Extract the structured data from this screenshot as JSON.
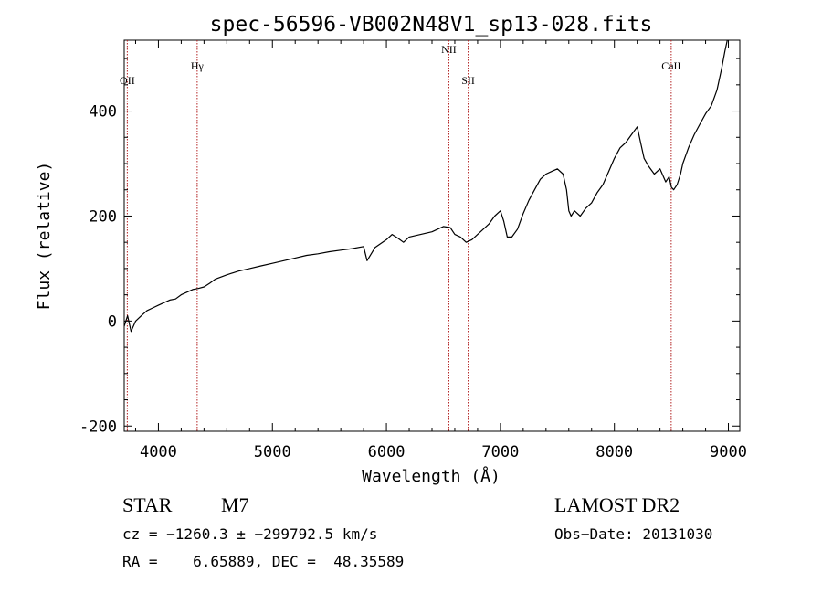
{
  "chart_data": {
    "type": "line",
    "title": "spec-56596-VB002N48V1_sp13-028.fits",
    "xlabel": "Wavelength (Å)",
    "ylabel": "Flux (relative)",
    "xlim": [
      3700,
      9100
    ],
    "ylim": [
      -210,
      535
    ],
    "x_ticks": [
      4000,
      5000,
      6000,
      7000,
      8000,
      9000
    ],
    "y_ticks": [
      -200,
      0,
      200,
      400
    ],
    "grid": false,
    "series": [
      {
        "x": [
          3700,
          3730,
          3760,
          3800,
          3850,
          3900,
          3950,
          4000,
          4050,
          4100,
          4150,
          4200,
          4250,
          4300,
          4350,
          4400,
          4450,
          4500,
          4600,
          4700,
          4800,
          4900,
          5000,
          5100,
          5200,
          5300,
          5400,
          5500,
          5600,
          5700,
          5800,
          5830,
          5900,
          6000,
          6050,
          6100,
          6150,
          6200,
          6300,
          6400,
          6500,
          6560,
          6600,
          6650,
          6700,
          6750,
          6800,
          6850,
          6900,
          6950,
          7000,
          7030,
          7060,
          7100,
          7150,
          7200,
          7250,
          7300,
          7350,
          7400,
          7450,
          7500,
          7550,
          7580,
          7600,
          7620,
          7650,
          7700,
          7750,
          7800,
          7850,
          7900,
          7950,
          8000,
          8050,
          8100,
          8150,
          8200,
          8230,
          8260,
          8300,
          8350,
          8400,
          8450,
          8480,
          8500,
          8520,
          8550,
          8580,
          8600,
          8650,
          8700,
          8750,
          8800,
          8850,
          8900,
          8940,
          8970,
          8990
        ],
        "y": [
          -10,
          10,
          -20,
          0,
          10,
          20,
          25,
          30,
          35,
          40,
          42,
          50,
          55,
          60,
          62,
          65,
          72,
          80,
          88,
          95,
          100,
          105,
          110,
          115,
          120,
          125,
          128,
          132,
          135,
          138,
          142,
          115,
          140,
          155,
          165,
          158,
          150,
          160,
          165,
          170,
          180,
          178,
          165,
          160,
          150,
          155,
          165,
          175,
          185,
          200,
          210,
          190,
          160,
          160,
          175,
          205,
          230,
          250,
          270,
          280,
          285,
          290,
          280,
          250,
          210,
          200,
          210,
          200,
          215,
          225,
          245,
          260,
          285,
          310,
          330,
          340,
          355,
          370,
          340,
          310,
          295,
          280,
          290,
          265,
          275,
          255,
          250,
          260,
          280,
          300,
          330,
          355,
          375,
          395,
          410,
          440,
          480,
          515,
          535
        ]
      }
    ],
    "lines": [
      {
        "label": "OII",
        "x": 3727
      },
      {
        "label": "Hγ",
        "x": 4340
      },
      {
        "label": "NII",
        "x": 6548
      },
      {
        "label": "SII",
        "x": 6717
      },
      {
        "label": "CaII",
        "x": 8498
      }
    ]
  },
  "info": {
    "object_class": "STAR",
    "subclass": "M7",
    "survey": "LAMOST DR2",
    "cz_line": "cz = −1260.3 ± −299792.5 km/s",
    "obs_date": "Obs−Date: 20131030",
    "radec_line": "RA =    6.65889, DEC =  48.35589"
  },
  "colors": {
    "spectrum": "#000000",
    "line_marker": "#b22222",
    "axes": "#000000"
  }
}
